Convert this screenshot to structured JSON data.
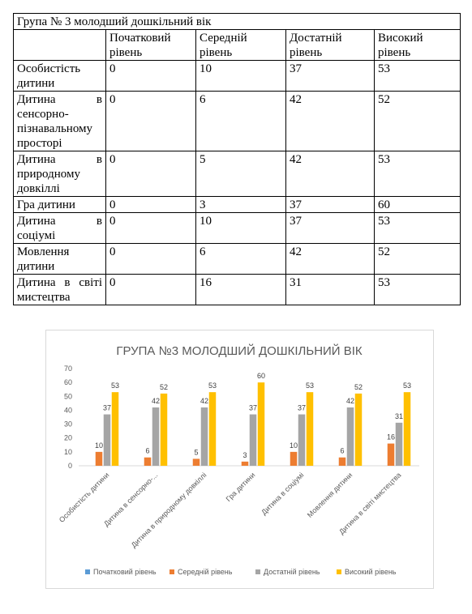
{
  "table": {
    "title": "Група №  3  молодший дошкільний вік",
    "columns": [
      "",
      "Початковий рівень",
      "Середній рівень",
      "Достатній рівень",
      "Високий рівень"
    ],
    "rows": [
      {
        "label": "Особистість дитини",
        "values": [
          "0",
          "10",
          "37",
          "53"
        ]
      },
      {
        "label": "Дитина в сенсорно-пізнавальному просторі",
        "values": [
          "0",
          "6",
          "42",
          "52"
        ]
      },
      {
        "label": "Дитина в природному довкіллі",
        "values": [
          "0",
          "5",
          "42",
          "53"
        ]
      },
      {
        "label": "Гра дитини",
        "values": [
          "0",
          "3",
          "37",
          "60"
        ]
      },
      {
        "label": "Дитина в соціумі",
        "values": [
          "0",
          "10",
          "37",
          "53"
        ]
      },
      {
        "label": "Мовлення дитини",
        "values": [
          "0",
          "6",
          "42",
          "52"
        ]
      },
      {
        "label": "Дитина в світі мистецтва",
        "values": [
          "0",
          "16",
          "31",
          "53"
        ]
      }
    ]
  },
  "chart_data": {
    "type": "bar",
    "title": "ГРУПА №3 МОЛОДШИЙ ДОШКІЛЬНИЙ ВІК",
    "categories": [
      "Особистість дитини",
      "Дитина в сенсорно-...",
      "Дитина в природному довкіллі",
      "Гра дитини",
      "Дитина в соціумі",
      "Мовлення дитини",
      "Дитина в світі мистецтва"
    ],
    "series": [
      {
        "name": "Початковий рівень",
        "values": [
          0,
          0,
          0,
          0,
          0,
          0,
          0
        ],
        "color": "#5b9bd5"
      },
      {
        "name": "Середній рівень",
        "values": [
          10,
          6,
          5,
          3,
          10,
          6,
          16
        ],
        "color": "#ed7d31"
      },
      {
        "name": "Достатній рівень",
        "values": [
          37,
          42,
          42,
          37,
          37,
          42,
          31
        ],
        "color": "#a5a5a5"
      },
      {
        "name": "Високий рівень",
        "values": [
          53,
          52,
          53,
          60,
          53,
          52,
          53
        ],
        "color": "#ffc000"
      }
    ],
    "ylim": [
      0,
      70
    ],
    "yticks": [
      "0",
      "10",
      "20",
      "30",
      "40",
      "50",
      "60",
      "70"
    ],
    "grid": false,
    "legend": "bottom"
  }
}
